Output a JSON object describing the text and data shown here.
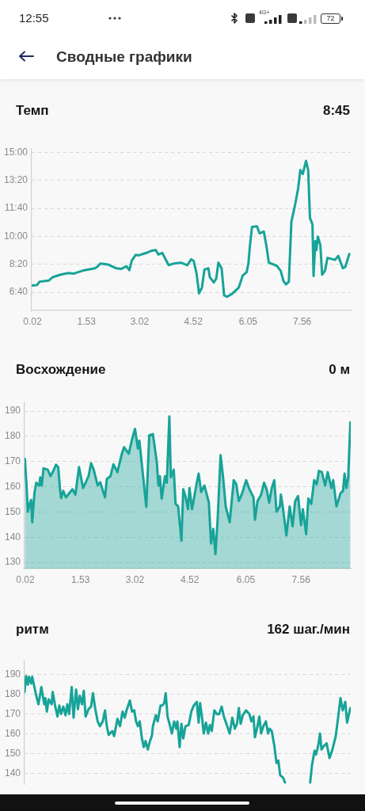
{
  "chart_data": [
    {
      "type": "other",
      "title": "Сводные графики",
      "annotations": [
        "12:55",
        "4G+",
        "72"
      ]
    },
    {
      "type": "line",
      "title": "Темп",
      "subtitle": "8:45",
      "color": "#17a398",
      "x": [
        0.02,
        0.15,
        0.22,
        0.48,
        0.59,
        0.81,
        1.03,
        1.18,
        1.47,
        1.77,
        1.83,
        1.92,
        2.14,
        2.36,
        2.51,
        2.65,
        2.73,
        2.8,
        2.91,
        2.99,
        3.21,
        3.36,
        3.47,
        3.54,
        3.65,
        3.83,
        3.98,
        4.17,
        4.35,
        4.46,
        4.53,
        4.61,
        4.68,
        4.76,
        4.83,
        4.94,
        4.98,
        5.09,
        5.16,
        5.22,
        5.31,
        5.38,
        5.46,
        5.6,
        5.79,
        5.9,
        6.01,
        6.06,
        6.1,
        6.16,
        6.3,
        6.37,
        6.49,
        6.57,
        6.63,
        6.85,
        6.96,
        7.04,
        7.11,
        7.19,
        7.26,
        7.37,
        7.45,
        7.51,
        7.58,
        7.67,
        7.73,
        7.78,
        7.85,
        7.88,
        7.93,
        7.96,
        8.0,
        8.07,
        8.12,
        8.2,
        8.27,
        8.48,
        8.57,
        8.7,
        8.77,
        8.88
      ],
      "values": [
        424,
        426,
        438,
        442,
        454,
        463,
        469,
        467,
        479,
        486,
        491,
        503,
        499,
        486,
        484,
        493,
        479,
        514,
        534,
        532,
        541,
        549,
        551,
        535,
        541,
        497,
        503,
        506,
        497,
        518,
        512,
        467,
        396,
        417,
        481,
        486,
        454,
        435,
        449,
        506,
        486,
        389,
        384,
        394,
        417,
        460,
        472,
        504,
        564,
        634,
        636,
        611,
        617,
        560,
        506,
        495,
        477,
        440,
        428,
        438,
        652,
        717,
        772,
        837,
        823,
        870,
        837,
        666,
        643,
        458,
        583,
        551,
        599,
        569,
        463,
        477,
        523,
        516,
        530,
        486,
        491,
        537
      ],
      "xlim": [
        0,
        8.92
      ],
      "xticks": [
        0.02,
        1.53,
        3.02,
        4.52,
        6.05,
        7.56
      ],
      "ylim": [
        335,
        915
      ],
      "yticks": [
        {
          "value": 400,
          "label": "6:40"
        },
        {
          "value": 500,
          "label": "8:20"
        },
        {
          "value": 600,
          "label": "10:00"
        },
        {
          "value": 700,
          "label": "11:40"
        },
        {
          "value": 800,
          "label": "13:20"
        },
        {
          "value": 900,
          "label": "15:00"
        }
      ],
      "grid": "y"
    },
    {
      "type": "area",
      "title": "Восхождение",
      "subtitle": "0 м",
      "color": "#17a398",
      "x": [
        0.01,
        0.05,
        0.09,
        0.14,
        0.18,
        0.21,
        0.27,
        0.32,
        0.4,
        0.43,
        0.47,
        0.52,
        0.63,
        0.71,
        0.77,
        0.86,
        0.92,
        0.97,
        1.0,
        1.06,
        1.13,
        1.31,
        1.39,
        1.49,
        1.6,
        1.67,
        1.75,
        1.82,
        1.89,
        2.0,
        2.07,
        2.2,
        2.25,
        2.35,
        2.43,
        2.54,
        2.65,
        2.72,
        2.85,
        2.94,
        3.02,
        3.1,
        3.14,
        3.26,
        3.33,
        3.41,
        3.51,
        3.62,
        3.66,
        3.7,
        3.75,
        3.84,
        3.89,
        3.96,
        4.0,
        4.08,
        4.13,
        4.2,
        4.29,
        4.34,
        4.4,
        4.47,
        4.51,
        4.58,
        4.71,
        4.76,
        4.83,
        4.92,
        5.04,
        5.1,
        5.16,
        5.22,
        5.28,
        5.36,
        5.43,
        5.5,
        5.61,
        5.72,
        5.79,
        5.86,
        5.95,
        6.06,
        6.15,
        6.26,
        6.3,
        6.37,
        6.47,
        6.55,
        6.62,
        6.69,
        6.76,
        6.83,
        6.89,
        6.98,
        7.01,
        7.07,
        7.16,
        7.25,
        7.33,
        7.4,
        7.48,
        7.56,
        7.61,
        7.7,
        7.76,
        7.84,
        7.92,
        7.99,
        8.05,
        8.13,
        8.22,
        8.29,
        8.39,
        8.44,
        8.53,
        8.64,
        8.71,
        8.75,
        8.8,
        8.85,
        8.91
      ],
      "values": [
        171.0,
        161.6,
        150.1,
        153.2,
        154.8,
        145.9,
        157.4,
        161.6,
        160.5,
        163.7,
        160.5,
        167.3,
        166.8,
        164.2,
        165.8,
        168.7,
        167.8,
        159.0,
        155.5,
        158.4,
        155.8,
        159.0,
        156.9,
        167.8,
        159.5,
        161.6,
        164.2,
        169.4,
        166.8,
        160.5,
        161.8,
        155.8,
        163.1,
        164.2,
        168.9,
        165.8,
        172.5,
        175.7,
        173.1,
        178.8,
        183.0,
        175.2,
        178.3,
        161.6,
        152.0,
        180.4,
        180.9,
        169.4,
        160.5,
        164.2,
        155.3,
        164.2,
        161.6,
        187.9,
        163.7,
        166.8,
        153.2,
        152.2,
        138.6,
        159.0,
        156.3,
        151.1,
        159.5,
        151.1,
        161.6,
        165.2,
        157.9,
        160.5,
        153.7,
        137.5,
        143.3,
        133.3,
        146.9,
        172.5,
        163.7,
        152.2,
        145.9,
        162.6,
        161.0,
        154.3,
        157.4,
        162.6,
        159.0,
        155.8,
        146.9,
        154.3,
        156.9,
        161.6,
        159.0,
        153.7,
        159.5,
        162.6,
        150.1,
        152.2,
        156.9,
        151.1,
        140.7,
        152.2,
        144.3,
        154.3,
        156.3,
        144.8,
        151.1,
        141.2,
        155.3,
        153.2,
        162.6,
        161.0,
        166.3,
        165.8,
        160.5,
        165.8,
        159.5,
        162.6,
        152.2,
        157.4,
        158.4,
        165.2,
        159.5,
        163.7,
        185.6
      ],
      "xlim": [
        0,
        8.92
      ],
      "xticks": [
        0.02,
        1.53,
        3.02,
        4.52,
        6.05,
        7.56
      ],
      "ylim": [
        127.5,
        193.5
      ],
      "yticks": [
        130,
        140,
        150,
        160,
        170,
        180,
        190
      ],
      "grid": "y"
    },
    {
      "type": "line",
      "title": "ритм",
      "subtitle": "162 шаг./мин",
      "color": "#17a398",
      "x": [
        0.0,
        0.04,
        0.09,
        0.12,
        0.18,
        0.21,
        0.27,
        0.32,
        0.38,
        0.41,
        0.46,
        0.51,
        0.54,
        0.57,
        0.61,
        0.66,
        0.74,
        0.77,
        0.84,
        0.9,
        0.95,
        1.0,
        1.06,
        1.12,
        1.17,
        1.22,
        1.29,
        1.34,
        1.41,
        1.46,
        1.51,
        1.57,
        1.62,
        1.67,
        1.75,
        1.82,
        1.87,
        1.93,
        2.0,
        2.06,
        2.14,
        2.2,
        2.25,
        2.3,
        2.4,
        2.45,
        2.54,
        2.61,
        2.68,
        2.74,
        2.79,
        2.88,
        2.94,
        3.0,
        3.05,
        3.1,
        3.15,
        3.21,
        3.26,
        3.31,
        3.37,
        3.43,
        3.48,
        3.51,
        3.59,
        3.64,
        3.72,
        3.77,
        3.82,
        3.86,
        3.91,
        3.98,
        4.03,
        4.09,
        4.15,
        4.18,
        4.24,
        4.29,
        4.34,
        4.4,
        4.49,
        4.56,
        4.63,
        4.71,
        4.76,
        4.8,
        4.85,
        4.9,
        4.96,
        5.02,
        5.07,
        5.12,
        5.19,
        5.26,
        5.32,
        5.39,
        5.45,
        5.52,
        5.61,
        5.68,
        5.75,
        5.81,
        5.86,
        5.91,
        5.97,
        6.06,
        6.15,
        6.2,
        6.26,
        6.3,
        6.37,
        6.42,
        6.47,
        6.53,
        6.6,
        6.66,
        6.7,
        6.76,
        6.83,
        6.89,
        6.94,
        6.99,
        7.07,
        7.12,
        7.45,
        7.81,
        7.86,
        7.93,
        7.97,
        8.03,
        8.08,
        8.12,
        8.19,
        8.26,
        8.34,
        8.41,
        8.51,
        8.57,
        8.64,
        8.7,
        8.77,
        8.82,
        8.87,
        8.91
      ],
      "values": [
        181.1,
        189.1,
        184.8,
        188.8,
        185.4,
        188.8,
        183.6,
        179.2,
        174.9,
        178.0,
        183.6,
        178.0,
        174.9,
        178.0,
        171.2,
        177.4,
        174.9,
        181.1,
        173.7,
        168.7,
        174.3,
        170.0,
        173.7,
        169.3,
        174.9,
        170.0,
        183.6,
        168.1,
        182.3,
        172.4,
        179.2,
        174.9,
        181.7,
        168.7,
        172.4,
        173.7,
        180.5,
        173.0,
        166.2,
        163.8,
        166.2,
        171.8,
        163.8,
        159.4,
        161.3,
        158.8,
        167.5,
        163.8,
        171.2,
        168.1,
        171.8,
        176.8,
        171.2,
        171.8,
        166.2,
        163.8,
        166.2,
        157.6,
        153.2,
        156.3,
        152.0,
        156.3,
        158.8,
        163.8,
        169.4,
        166.2,
        174.3,
        174.3,
        175.5,
        180.5,
        168.7,
        163.8,
        160.1,
        166.2,
        162.5,
        166.2,
        153.2,
        165.0,
        157.6,
        163.8,
        164.4,
        171.2,
        174.3,
        176.1,
        165.6,
        175.5,
        168.7,
        160.1,
        165.6,
        160.1,
        164.4,
        161.3,
        171.8,
        169.9,
        169.9,
        173.7,
        168.7,
        165.0,
        160.1,
        168.1,
        162.5,
        165.0,
        173.0,
        165.0,
        169.4,
        171.8,
        169.9,
        166.2,
        168.7,
        158.2,
        163.8,
        168.7,
        160.1,
        163.8,
        166.2,
        160.1,
        162.5,
        161.3,
        153.9,
        145.2,
        146.4,
        139.0,
        137.8,
        135.3,
        null,
        135.3,
        144.0,
        151.4,
        149.5,
        153.9,
        160.1,
        152.0,
        153.9,
        155.1,
        147.7,
        151.4,
        158.8,
        167.5,
        178.0,
        171.8,
        176.1,
        165.6,
        169.9,
        173.0
      ],
      "xlim": [
        0,
        8.92
      ],
      "ylim": [
        134.2,
        197
      ],
      "yticks": [
        140,
        150,
        160,
        170,
        180,
        190
      ],
      "grid": "y",
      "tick_labels": "y"
    }
  ]
}
